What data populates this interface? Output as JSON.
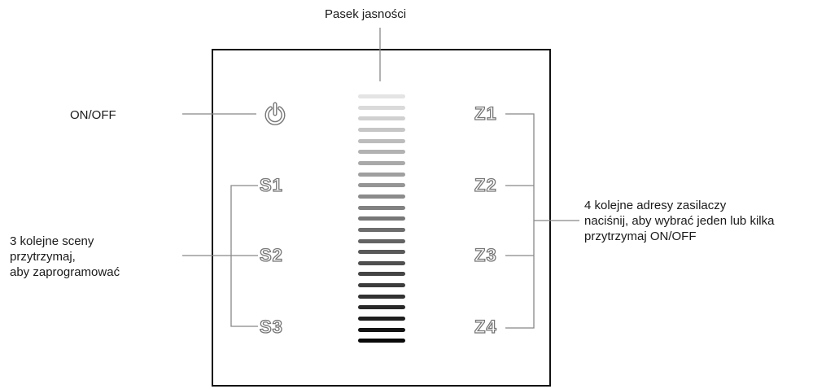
{
  "annotations": {
    "brightness_bar": "Pasek jasności",
    "on_off": "ON/OFF",
    "scenes": "3 kolejne sceny\nprzytrzymaj,\naby zaprogramować",
    "zones": "4 kolejne adresy zasilaczy\nnaciśnij, aby wybrać jeden lub kilka\nprzytrzymaj ON/OFF"
  },
  "panel": {
    "power_icon": "power-icon",
    "scene_buttons": [
      {
        "label": "S1"
      },
      {
        "label": "S2"
      },
      {
        "label": "S3"
      }
    ],
    "zone_buttons": [
      {
        "label": "Z1"
      },
      {
        "label": "Z2"
      },
      {
        "label": "Z3"
      },
      {
        "label": "Z4"
      }
    ],
    "brightness_bar": {
      "segments": 23,
      "color_light": "#e4e4e4",
      "color_dark": "#0a0a0a"
    }
  },
  "colors": {
    "leader_line": "#888888",
    "button_outline": "#777777",
    "panel_border": "#111111"
  }
}
